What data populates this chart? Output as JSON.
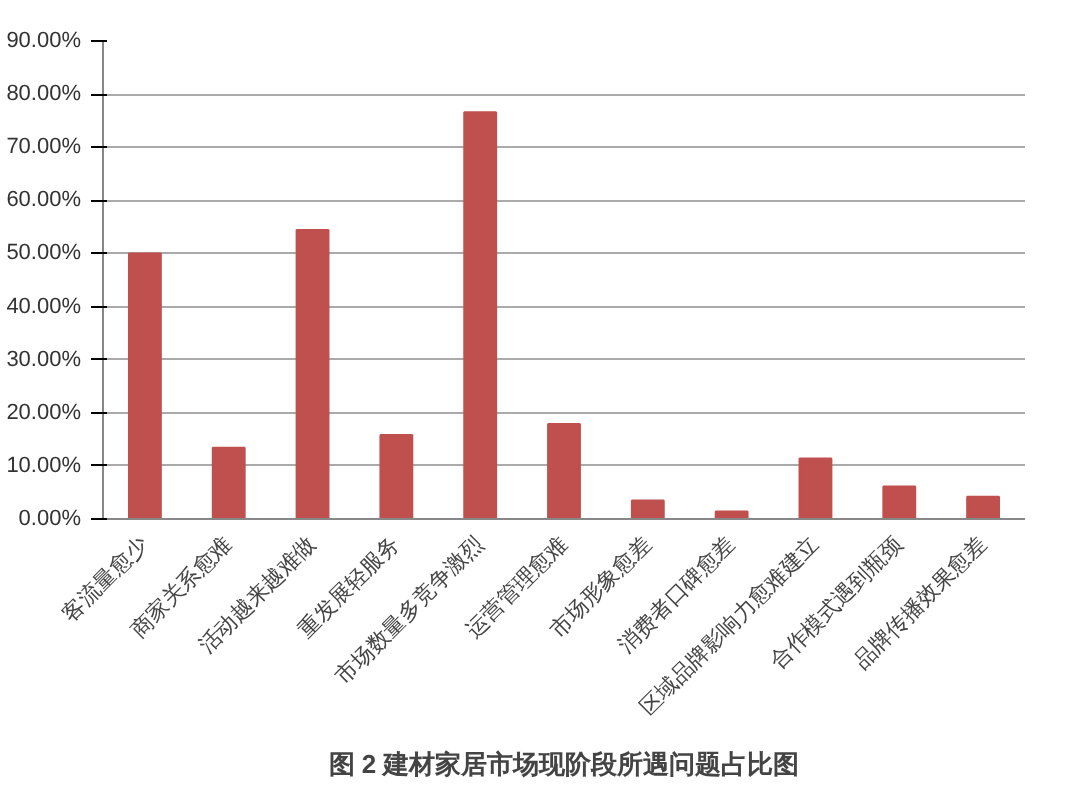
{
  "chart_data": {
    "type": "bar",
    "title": "图 2 建材家居市场现阶段所遇问题占比图",
    "categories": [
      "客流量愈少",
      "商家关系愈难",
      "活动越来越难做",
      "重发展轻服务",
      "市场数量多竞争激烈",
      "运营管理愈难",
      "市场形象愈差",
      "消费者口碑愈差",
      "区域品牌影响力愈难建立",
      "合作模式遇到瓶颈",
      "品牌传播效果愈差"
    ],
    "values": [
      50.0,
      13.4,
      54.4,
      15.8,
      76.6,
      17.9,
      3.5,
      1.4,
      11.4,
      6.1,
      4.2
    ],
    "color": "#c0504d",
    "ylim": [
      0,
      90
    ],
    "yticks": [
      {
        "value": 0,
        "label": "0.00%"
      },
      {
        "value": 10,
        "label": "10.00%"
      },
      {
        "value": 20,
        "label": "20.00%"
      },
      {
        "value": 30,
        "label": "30.00%"
      },
      {
        "value": 40,
        "label": "40.00%"
      },
      {
        "value": 50,
        "label": "50.00%"
      },
      {
        "value": 60,
        "label": "60.00%"
      },
      {
        "value": 70,
        "label": "70.00%"
      },
      {
        "value": 80,
        "label": "80.00%"
      },
      {
        "value": 90,
        "label": "90.00%"
      }
    ],
    "grid": "y"
  }
}
